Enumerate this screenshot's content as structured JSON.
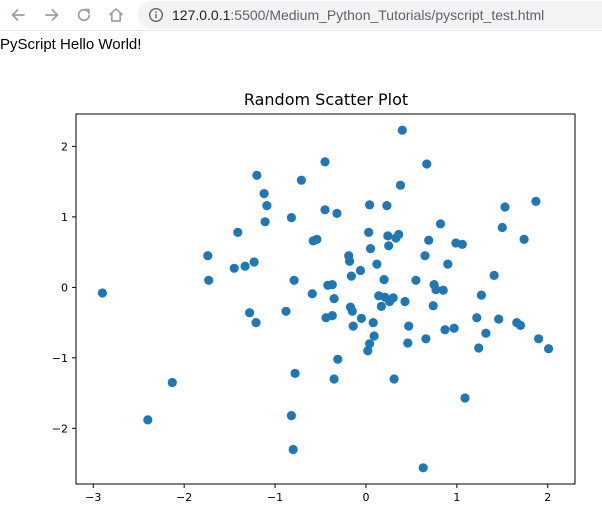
{
  "browser": {
    "nav_icons": [
      "back-arrow-icon",
      "forward-arrow-icon",
      "reload-icon",
      "home-icon"
    ],
    "url_host": "127.0.0.1",
    "url_rest": ":5500/Medium_Python_Tutorials/pyscript_test.html"
  },
  "page": {
    "heading": "PyScript Hello World!"
  },
  "colors": {
    "marker": "#1f77b4",
    "axes": "#000000"
  },
  "chart_data": {
    "type": "scatter",
    "title": "Random Scatter Plot",
    "xlabel": "",
    "ylabel": "",
    "xlim": [
      -3.19,
      2.3
    ],
    "ylim": [
      -2.79,
      2.46
    ],
    "xticks": [
      -3,
      -2,
      -1,
      0,
      1,
      2
    ],
    "yticks": [
      -2,
      -1,
      0,
      1,
      2
    ],
    "xtick_labels": [
      "−3",
      "−2",
      "−1",
      "0",
      "1",
      "2"
    ],
    "ytick_labels": [
      "−2",
      "−1",
      "0",
      "1",
      "2"
    ],
    "grid": false,
    "points": [
      [
        -2.9,
        -0.08
      ],
      [
        -2.4,
        -1.88
      ],
      [
        -2.13,
        -1.35
      ],
      [
        -1.74,
        0.45
      ],
      [
        -1.73,
        0.1
      ],
      [
        -1.45,
        0.27
      ],
      [
        -1.41,
        0.78
      ],
      [
        -1.33,
        0.3
      ],
      [
        -1.28,
        -0.36
      ],
      [
        -1.23,
        0.36
      ],
      [
        -1.21,
        -0.5
      ],
      [
        -1.2,
        1.59
      ],
      [
        -1.12,
        1.33
      ],
      [
        -1.09,
        1.16
      ],
      [
        -1.11,
        0.93
      ],
      [
        -0.88,
        -0.34
      ],
      [
        -0.82,
        -1.82
      ],
      [
        -0.82,
        0.99
      ],
      [
        -0.8,
        -2.3
      ],
      [
        -0.79,
        0.1
      ],
      [
        -0.78,
        -1.22
      ],
      [
        -0.71,
        1.52
      ],
      [
        -0.59,
        -0.09
      ],
      [
        -0.58,
        0.66
      ],
      [
        -0.54,
        0.68
      ],
      [
        -0.45,
        1.78
      ],
      [
        -0.45,
        1.1
      ],
      [
        -0.44,
        -0.43
      ],
      [
        -0.42,
        0.03
      ],
      [
        -0.37,
        -0.4
      ],
      [
        -0.37,
        0.04
      ],
      [
        -0.35,
        -0.16
      ],
      [
        -0.35,
        -1.3
      ],
      [
        -0.32,
        1.05
      ],
      [
        -0.31,
        -1.02
      ],
      [
        -0.19,
        0.45
      ],
      [
        -0.18,
        0.37
      ],
      [
        -0.16,
        0.16
      ],
      [
        -0.17,
        -0.28
      ],
      [
        -0.15,
        -0.34
      ],
      [
        -0.14,
        -0.55
      ],
      [
        -0.06,
        0.24
      ],
      [
        -0.05,
        -0.44
      ],
      [
        0.02,
        -0.9
      ],
      [
        0.03,
        0.78
      ],
      [
        0.04,
        -0.8
      ],
      [
        0.04,
        1.17
      ],
      [
        0.05,
        0.55
      ],
      [
        0.08,
        -0.5
      ],
      [
        0.09,
        -0.69
      ],
      [
        0.12,
        0.33
      ],
      [
        0.14,
        -0.12
      ],
      [
        0.17,
        -0.27
      ],
      [
        0.2,
        0.11
      ],
      [
        0.21,
        -0.14
      ],
      [
        0.23,
        1.16
      ],
      [
        0.24,
        0.73
      ],
      [
        0.25,
        0.59
      ],
      [
        0.26,
        -0.2
      ],
      [
        0.3,
        -0.15
      ],
      [
        0.31,
        -1.3
      ],
      [
        0.33,
        0.7
      ],
      [
        0.36,
        0.75
      ],
      [
        0.38,
        1.45
      ],
      [
        0.4,
        2.23
      ],
      [
        0.43,
        -0.2
      ],
      [
        0.46,
        -0.79
      ],
      [
        0.47,
        -0.55
      ],
      [
        0.55,
        0.1
      ],
      [
        0.63,
        -2.56
      ],
      [
        0.65,
        0.45
      ],
      [
        0.66,
        -0.73
      ],
      [
        0.67,
        1.75
      ],
      [
        0.69,
        0.67
      ],
      [
        0.74,
        -0.26
      ],
      [
        0.75,
        0.04
      ],
      [
        0.77,
        -0.03
      ],
      [
        0.82,
        0.9
      ],
      [
        0.85,
        -0.04
      ],
      [
        0.87,
        -0.6
      ],
      [
        0.9,
        0.33
      ],
      [
        0.97,
        -0.58
      ],
      [
        0.99,
        0.63
      ],
      [
        1.06,
        0.61
      ],
      [
        1.09,
        -1.57
      ],
      [
        1.22,
        -0.43
      ],
      [
        1.24,
        -0.86
      ],
      [
        1.27,
        -0.11
      ],
      [
        1.32,
        -0.65
      ],
      [
        1.41,
        0.17
      ],
      [
        1.46,
        -0.45
      ],
      [
        1.5,
        0.85
      ],
      [
        1.53,
        1.14
      ],
      [
        1.66,
        -0.5
      ],
      [
        1.7,
        -0.54
      ],
      [
        1.74,
        0.68
      ],
      [
        1.87,
        1.22
      ],
      [
        1.9,
        -0.73
      ],
      [
        2.01,
        -0.87
      ]
    ]
  }
}
